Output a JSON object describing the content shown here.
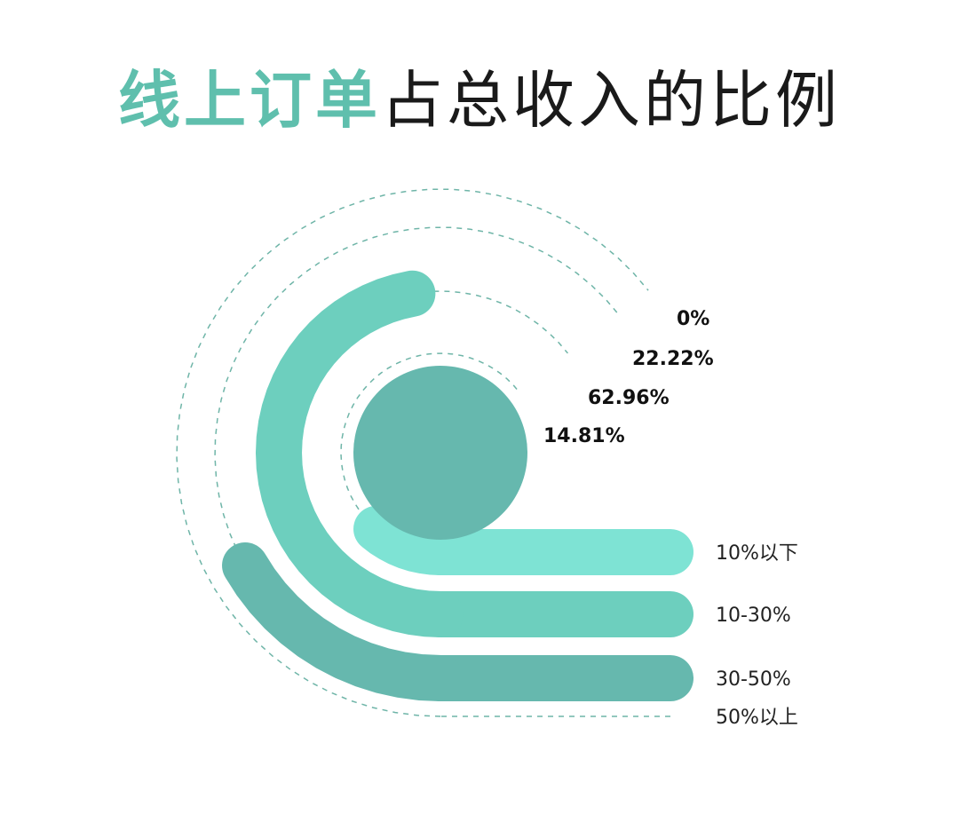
{
  "title": {
    "highlight": "线上订单",
    "rest": "占总收入的比例",
    "highlight_color": "#5fbfad"
  },
  "chart_data": {
    "type": "radial-bar",
    "title": "线上订单占总收入的比例",
    "categories": [
      "50%以上",
      "30-50%",
      "10-30%",
      "10%以下"
    ],
    "values": [
      0,
      22.22,
      62.96,
      14.81
    ],
    "value_labels": [
      "0%",
      "22.22%",
      "62.96%",
      "14.81%"
    ],
    "unit": "%",
    "colors": [
      "#5fbfad",
      "#66b8ae",
      "#6dcfbe",
      "#7ee3d4"
    ],
    "center_dot_color": "#66b8ae",
    "guide_color": "#6fb5a8",
    "grid": false
  }
}
